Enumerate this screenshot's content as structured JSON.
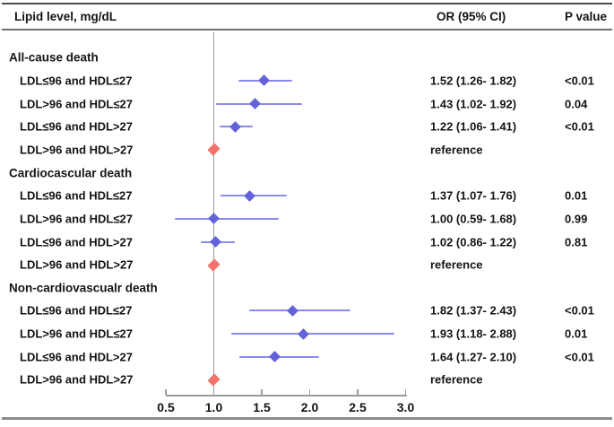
{
  "header": {
    "lipid_label": "Lipid level, mg/dL",
    "or_label": "OR (95% CI)",
    "p_label": "P value"
  },
  "colors": {
    "marker_blue": "#6262DB",
    "ci_line_blue": "#8A8AEC",
    "marker_red": "#F3736C",
    "axis_gray": "#9A9A9A",
    "text": "#141414"
  },
  "chart_data": {
    "type": "scatter",
    "variant": "forest-plot",
    "title": "",
    "xlabel": "",
    "xlim": [
      0.5,
      3.0
    ],
    "x_ticks": [
      0.5,
      1.0,
      1.5,
      2.0,
      2.5,
      3.0
    ],
    "x_tick_labels": [
      "0.5",
      "1.0",
      "1.5",
      "2.0",
      "2.5",
      "3.0"
    ],
    "reference_line_x": 1.0,
    "reference_label": "reference",
    "groups": [
      {
        "heading": "All-cause death",
        "rows": [
          {
            "label": "LDL≤96 and HDL≤27",
            "or": 1.52,
            "ci_low": 1.26,
            "ci_high": 1.82,
            "or_text": "1.52 (1.26- 1.82)",
            "p_value": "<0.01"
          },
          {
            "label": "LDL>96 and HDL≤27",
            "or": 1.43,
            "ci_low": 1.02,
            "ci_high": 1.92,
            "or_text": "1.43 (1.02- 1.92)",
            "p_value": "0.04"
          },
          {
            "label": "LDL≤96 and HDL>27",
            "or": 1.22,
            "ci_low": 1.06,
            "ci_high": 1.41,
            "or_text": "1.22 (1.06- 1.41)",
            "p_value": "<0.01"
          },
          {
            "label": "LDL>96 and HDL>27",
            "reference": true,
            "or": 1.0,
            "or_text": "reference",
            "p_value": ""
          }
        ]
      },
      {
        "heading": "Cardiocascular death",
        "rows": [
          {
            "label": "LDL≤96 and HDL≤27",
            "or": 1.37,
            "ci_low": 1.07,
            "ci_high": 1.76,
            "or_text": "1.37 (1.07- 1.76)",
            "p_value": "0.01"
          },
          {
            "label": "LDL>96 and HDL≤27",
            "or": 1.0,
            "ci_low": 0.59,
            "ci_high": 1.68,
            "or_text": "1.00 (0.59- 1.68)",
            "p_value": "0.99"
          },
          {
            "label": "LDL≤96 and HDL>27",
            "or": 1.02,
            "ci_low": 0.86,
            "ci_high": 1.22,
            "or_text": "1.02 (0.86- 1.22)",
            "p_value": "0.81"
          },
          {
            "label": "LDL>96 and HDL>27",
            "reference": true,
            "or": 1.0,
            "or_text": "reference",
            "p_value": ""
          }
        ]
      },
      {
        "heading": "Non-cardiovascualr death",
        "rows": [
          {
            "label": "LDL≤96 and HDL≤27",
            "or": 1.82,
            "ci_low": 1.37,
            "ci_high": 2.43,
            "or_text": "1.82 (1.37- 2.43)",
            "p_value": "<0.01"
          },
          {
            "label": "LDL>96 and HDL≤27",
            "or": 1.93,
            "ci_low": 1.18,
            "ci_high": 2.88,
            "or_text": "1.93 (1.18- 2.88)",
            "p_value": "0.01"
          },
          {
            "label": "LDL≤96 and HDL>27",
            "or": 1.64,
            "ci_low": 1.27,
            "ci_high": 2.1,
            "or_text": "1.64 (1.27- 2.10)",
            "p_value": "<0.01"
          },
          {
            "label": "LDL>96 and HDL>27",
            "reference": true,
            "or": 1.0,
            "or_text": "reference",
            "p_value": ""
          }
        ]
      }
    ]
  }
}
